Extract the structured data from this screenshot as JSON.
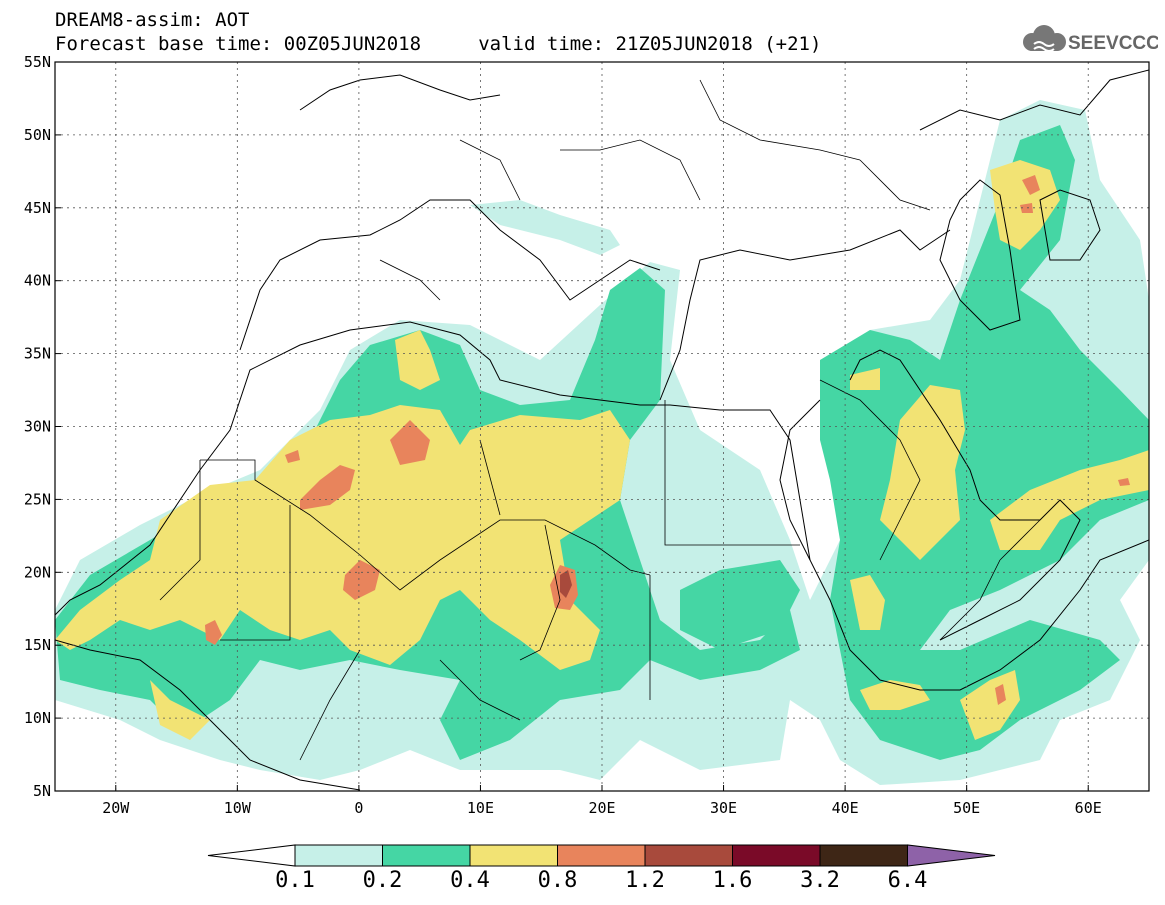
{
  "title": {
    "line1": "DREAM8-assim: AOT",
    "line2": "Forecast base time: 00Z05JUN2018     valid time: 21Z05JUN2018 (+21)"
  },
  "logo": {
    "text": "SEEVCCC",
    "icon": "cloud-icon"
  },
  "map": {
    "lon_range": [
      -25,
      65
    ],
    "lat_range": [
      5,
      55
    ],
    "lat_ticks": [
      "55N",
      "50N",
      "45N",
      "40N",
      "35N",
      "30N",
      "25N",
      "20N",
      "15N",
      "10N",
      "5N"
    ],
    "lon_ticks": [
      "20W",
      "10W",
      "0",
      "10E",
      "20E",
      "30E",
      "40E",
      "50E",
      "60E"
    ]
  },
  "colorbar": {
    "labels": [
      "0.1",
      "0.2",
      "0.4",
      "0.8",
      "1.2",
      "1.6",
      "3.2",
      "6.4"
    ],
    "colors": [
      "#ffffff",
      "#c6f0e8",
      "#45d6a4",
      "#f2e374",
      "#e8845c",
      "#a84a3c",
      "#7a0a28",
      "#3e2616",
      "#8e62a8"
    ]
  },
  "colors": {
    "level_0_1": "#c6f0e8",
    "level_0_2": "#45d6a4",
    "level_0_4": "#f2e374",
    "level_0_8": "#e8845c",
    "level_1_2": "#a84a3c"
  }
}
